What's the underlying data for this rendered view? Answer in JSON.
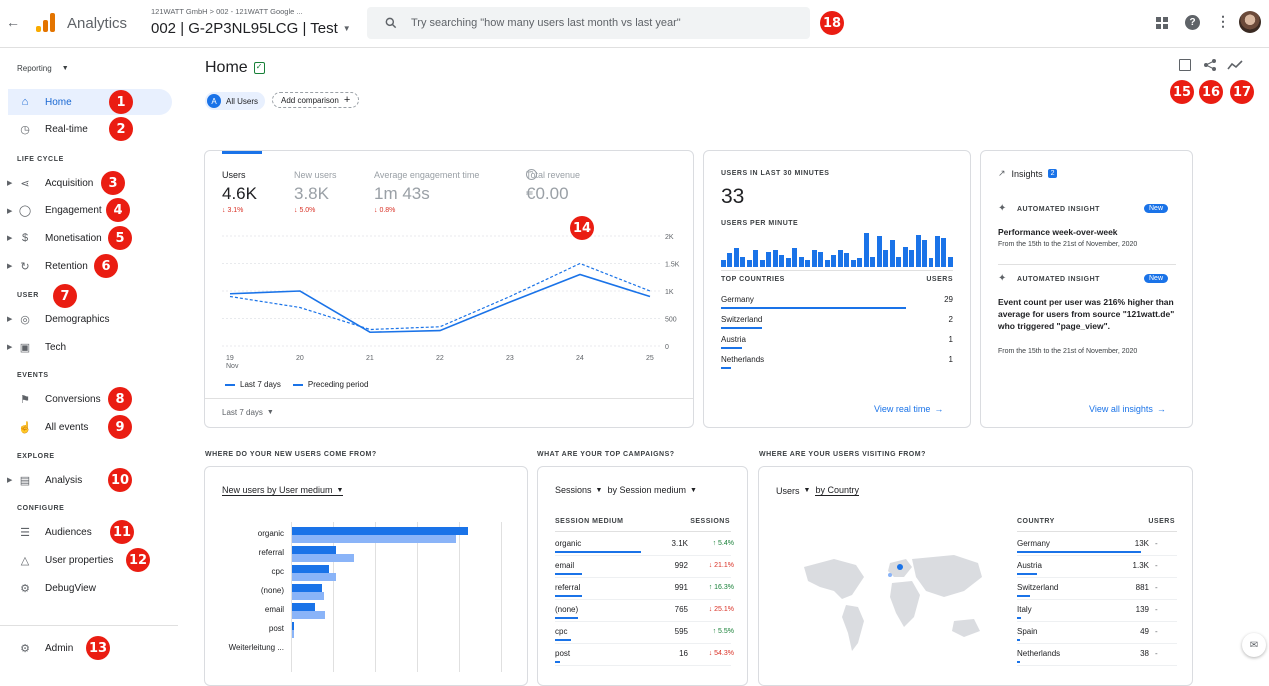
{
  "topbar": {
    "app_name": "Analytics",
    "breadcrumb": "121WATT GmbH > 002 - 121WATT Google ...",
    "property": "002 | G-2P3NL95LCG | Test",
    "search_placeholder": "Try searching \"how many users last month vs last year\""
  },
  "sidebar": {
    "reporting": "Reporting",
    "home": "Home",
    "realtime": "Real-time",
    "sec_lifecycle": "LIFE CYCLE",
    "acquisition": "Acquisition",
    "engagement": "Engagement",
    "monetisation": "Monetisation",
    "retention": "Retention",
    "sec_user": "USER",
    "demographics": "Demographics",
    "tech": "Tech",
    "sec_events": "EVENTS",
    "conversions": "Conversions",
    "all_events": "All events",
    "sec_explore": "EXPLORE",
    "analysis": "Analysis",
    "sec_configure": "CONFIGURE",
    "audiences": "Audiences",
    "user_properties": "User properties",
    "debugview": "DebugView",
    "admin": "Admin"
  },
  "badges": [
    "1",
    "2",
    "3",
    "4",
    "5",
    "6",
    "7",
    "8",
    "9",
    "10",
    "11",
    "12",
    "13",
    "14",
    "15",
    "16",
    "17",
    "18"
  ],
  "main": {
    "title": "Home",
    "segment_letter": "A",
    "segment": "All Users",
    "add_comparison": "Add comparison"
  },
  "overview": {
    "metrics": [
      {
        "label": "Users",
        "value": "4.6K",
        "change": "↓ 3.1%"
      },
      {
        "label": "New users",
        "value": "3.8K",
        "change": "↓ 5.0%"
      },
      {
        "label": "Average engagement time",
        "value": "1m 43s",
        "change": "↓ 0.8%"
      },
      {
        "label": "Total revenue",
        "value": "€0.00",
        "change": ""
      }
    ],
    "legend_current": "Last 7 days",
    "legend_previous": "Preceding period",
    "date_range": "Last 7 days",
    "x_month": "Nov"
  },
  "chart_data": {
    "type": "line",
    "x": [
      "19",
      "20",
      "21",
      "22",
      "23",
      "24",
      "25"
    ],
    "ytick_labels": [
      "2K",
      "1.5K",
      "1K",
      "500",
      "0"
    ],
    "ylim": [
      0,
      2000
    ],
    "series": [
      {
        "name": "Last 7 days",
        "values": [
          950,
          1000,
          250,
          280,
          800,
          1300,
          900
        ]
      },
      {
        "name": "Preceding period",
        "values": [
          900,
          700,
          300,
          350,
          900,
          1500,
          1000
        ]
      }
    ]
  },
  "realtime": {
    "label": "USERS IN LAST 30 MINUTES",
    "value": "33",
    "per_minute": "USERS PER MINUTE",
    "bars": [
      0.2,
      0.4,
      0.55,
      0.3,
      0.2,
      0.5,
      0.2,
      0.45,
      0.5,
      0.35,
      0.25,
      0.55,
      0.3,
      0.2,
      0.5,
      0.45,
      0.2,
      0.35,
      0.5,
      0.4,
      0.2,
      0.25,
      1.0,
      0.3,
      0.9,
      0.5,
      0.8,
      0.3,
      0.6,
      0.5,
      0.95,
      0.8,
      0.25,
      0.9,
      0.85,
      0.3
    ],
    "top_countries": "TOP COUNTRIES",
    "users_col": "USERS",
    "countries": [
      {
        "name": "Germany",
        "value": "29",
        "bar": 0.9
      },
      {
        "name": "Switzerland",
        "value": "2",
        "bar": 0.2
      },
      {
        "name": "Austria",
        "value": "1",
        "bar": 0.1
      },
      {
        "name": "Netherlands",
        "value": "1",
        "bar": 0.05
      }
    ],
    "link": "View real time"
  },
  "insights": {
    "title": "Insights",
    "count": "2",
    "items": [
      {
        "label": "AUTOMATED INSIGHT",
        "tag": "New",
        "title": "Performance week-over-week",
        "sub": "From the 15th to the 21st of November, 2020"
      },
      {
        "label": "AUTOMATED INSIGHT",
        "tag": "New",
        "title": "Event count per user was 216% higher than average for users from source \"121watt.de\" who triggered \"page_view\".",
        "sub": "From the 15th to the 21st of November, 2020"
      }
    ],
    "link": "View all insights"
  },
  "section_titles": {
    "new_users": "WHERE DO YOUR NEW USERS COME FROM?",
    "campaigns": "WHAT ARE YOUR TOP CAMPAIGNS?",
    "visiting": "WHERE ARE YOUR USERS VISITING FROM?"
  },
  "new_users_card": {
    "selector": "New users by User medium",
    "rows": [
      {
        "label": "organic",
        "cur": 1.0,
        "prev": 0.93
      },
      {
        "label": "referral",
        "cur": 0.25,
        "prev": 0.35
      },
      {
        "label": "cpc",
        "cur": 0.21,
        "prev": 0.25
      },
      {
        "label": "(none)",
        "cur": 0.17,
        "prev": 0.18
      },
      {
        "label": "email",
        "cur": 0.13,
        "prev": 0.19
      },
      {
        "label": "post",
        "cur": 0.01,
        "prev": 0.01
      },
      {
        "label": "Weiterleitung ...",
        "cur": 0,
        "prev": 0
      }
    ]
  },
  "campaigns_card": {
    "selector1": "Sessions",
    "selector2": "by Session medium",
    "col1": "SESSION MEDIUM",
    "col2": "SESSIONS",
    "rows": [
      {
        "name": "organic",
        "value": "3.1K",
        "change": "↑ 5.4%",
        "dir": "up",
        "bar": 0.95
      },
      {
        "name": "email",
        "value": "992",
        "change": "↓ 21.1%",
        "dir": "down",
        "bar": 0.3
      },
      {
        "name": "referral",
        "value": "991",
        "change": "↑ 16.3%",
        "dir": "up",
        "bar": 0.3
      },
      {
        "name": "(none)",
        "value": "765",
        "change": "↓ 25.1%",
        "dir": "down",
        "bar": 0.25
      },
      {
        "name": "cpc",
        "value": "595",
        "change": "↑ 5.5%",
        "dir": "up",
        "bar": 0.18
      },
      {
        "name": "post",
        "value": "16",
        "change": "↓ 54.3%",
        "dir": "down",
        "bar": 0.05
      }
    ]
  },
  "country_card": {
    "selector1": "Users",
    "selector2": "by Country",
    "col1": "COUNTRY",
    "col2": "USERS",
    "rows": [
      {
        "name": "Germany",
        "value": "13K",
        "change": "-",
        "bar": 0.95
      },
      {
        "name": "Austria",
        "value": "1.3K",
        "change": "-",
        "bar": 0.15
      },
      {
        "name": "Switzerland",
        "value": "881",
        "change": "-",
        "bar": 0.1
      },
      {
        "name": "Italy",
        "value": "139",
        "change": "-",
        "bar": 0.03
      },
      {
        "name": "Spain",
        "value": "49",
        "change": "-",
        "bar": 0.02
      },
      {
        "name": "Netherlands",
        "value": "38",
        "change": "-",
        "bar": 0.02
      }
    ]
  }
}
